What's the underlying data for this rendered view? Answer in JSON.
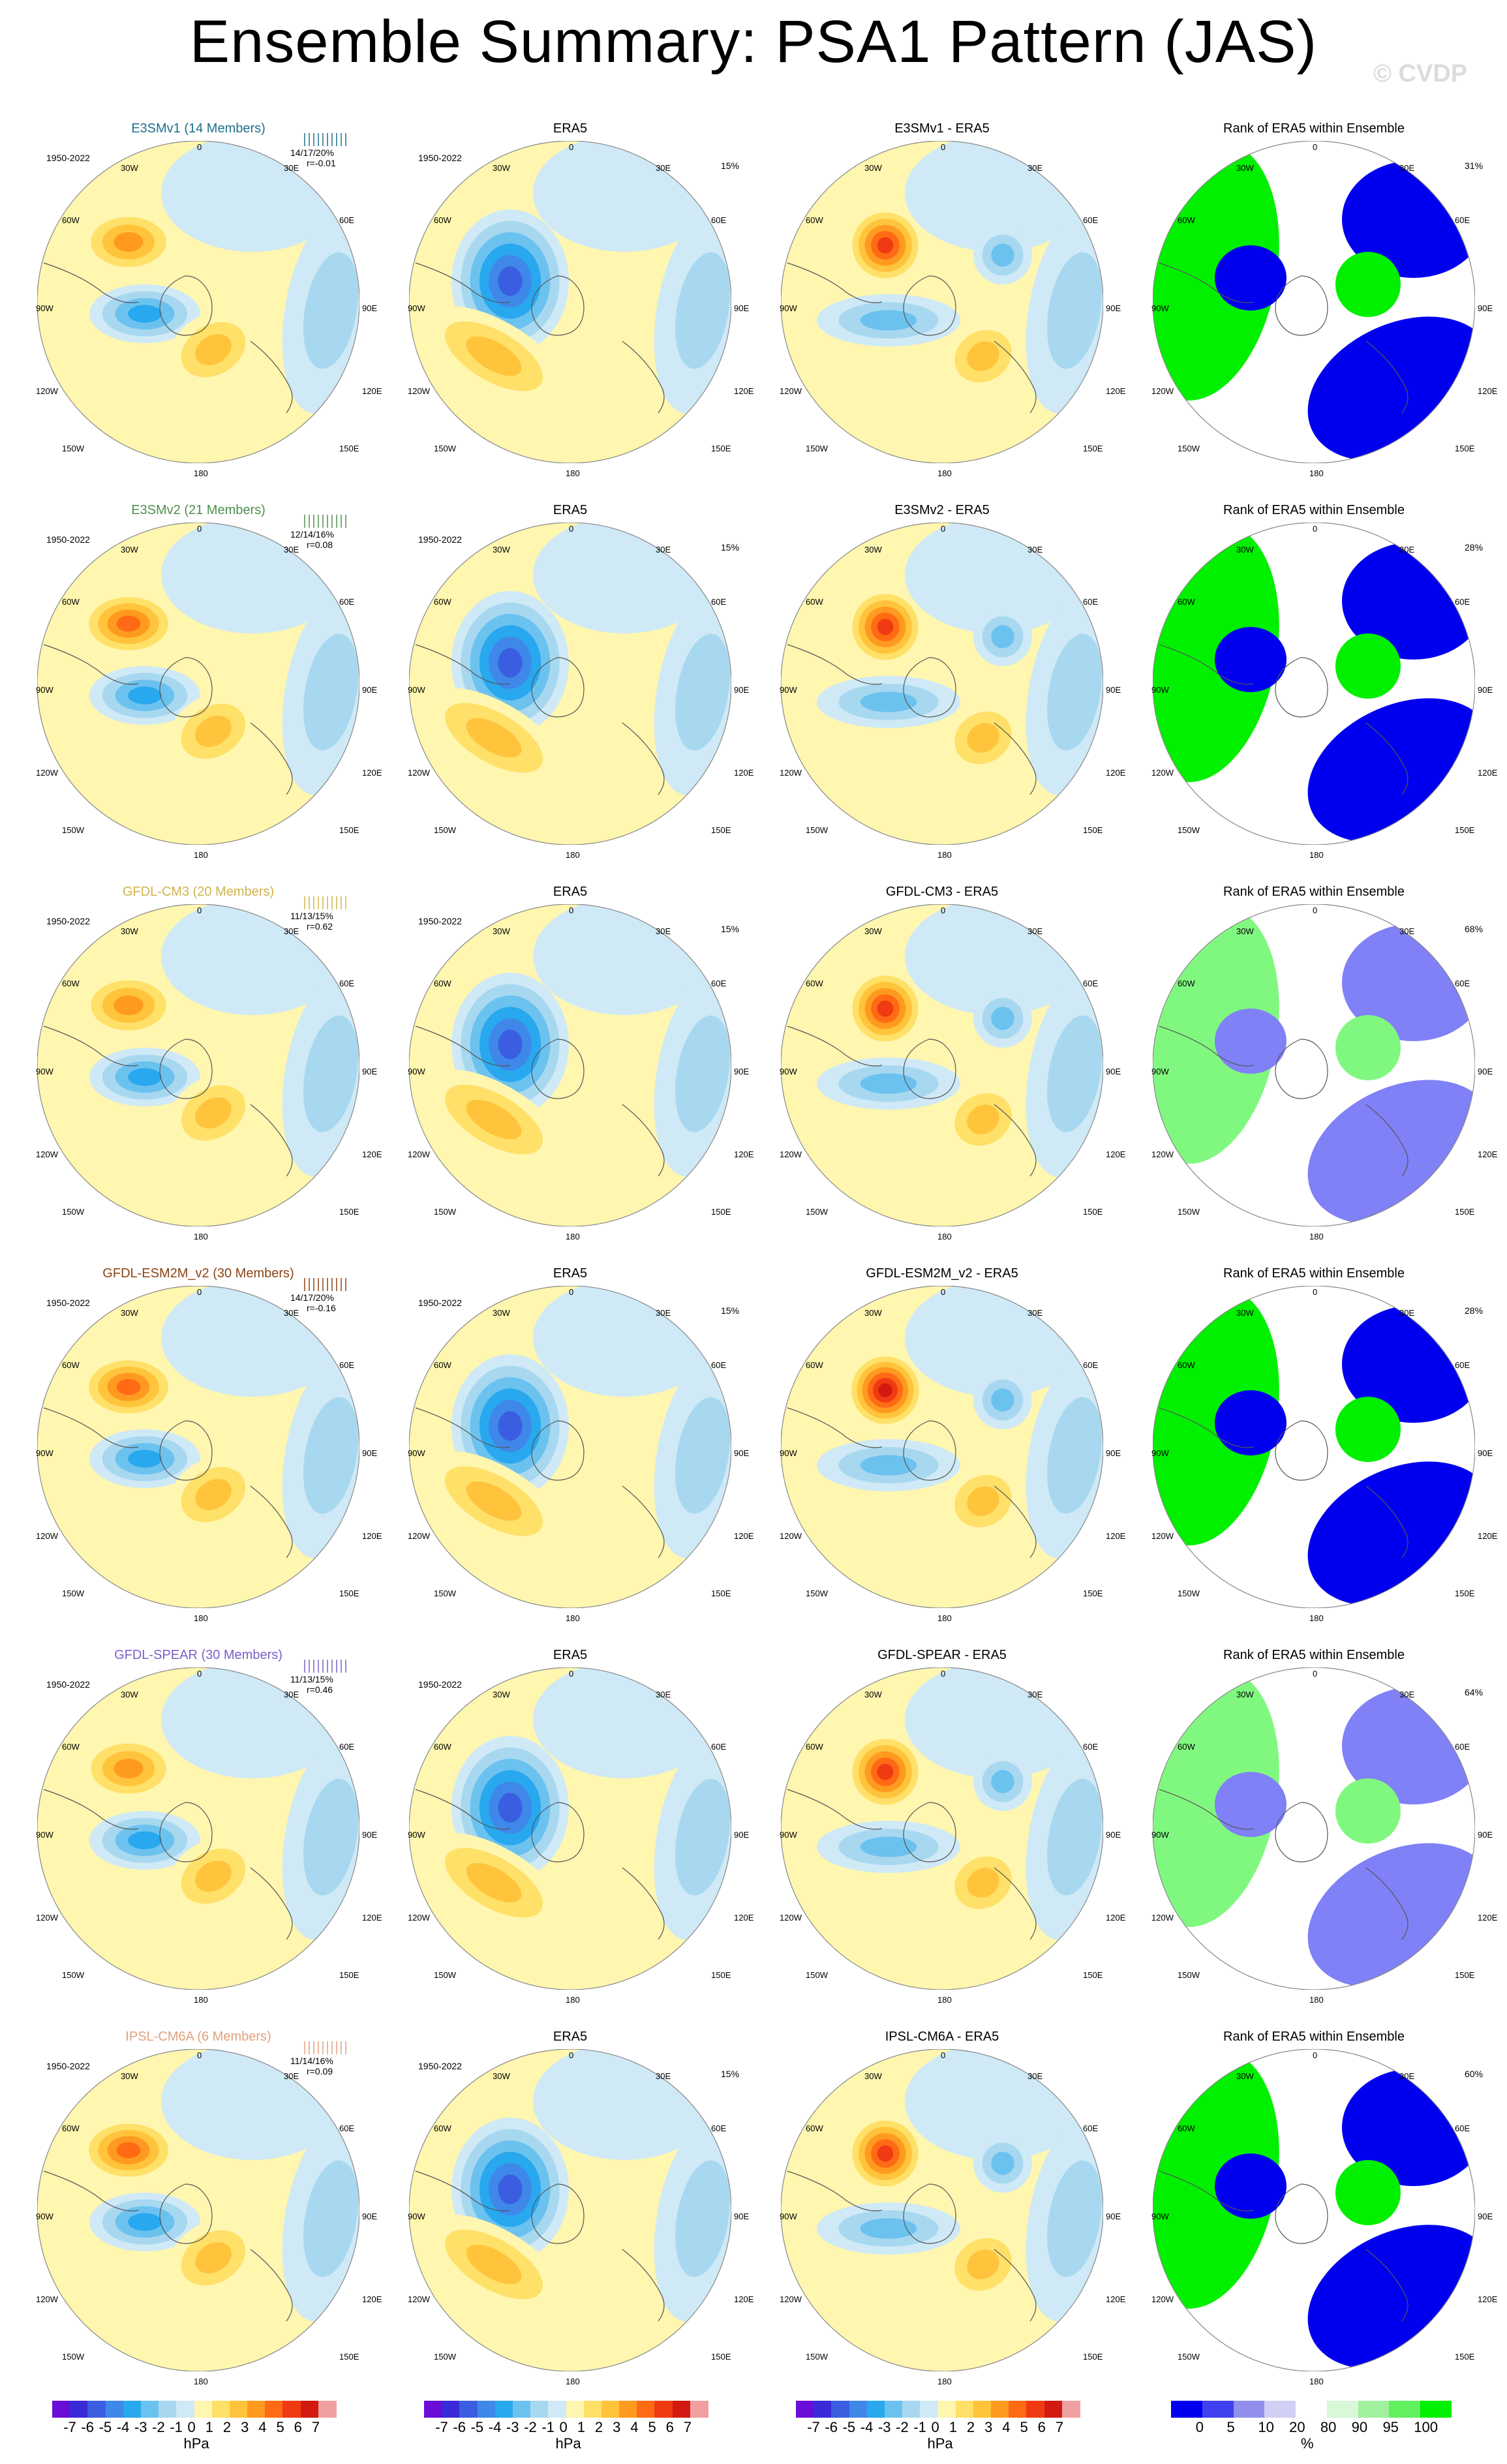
{
  "title": "Ensemble Summary: PSA1 Pattern (JAS)",
  "watermark": "© CVDP",
  "lon_labels": {
    "top": "0",
    "t30w": "30W",
    "t30e": "30E",
    "t60w": "60W",
    "t60e": "60E",
    "t90w": "90W",
    "t90e": "90E",
    "t120w": "120W",
    "t120e": "120E",
    "t150w": "150W",
    "t150e": "150E",
    "bottom": "180"
  },
  "rows": [
    {
      "model": "E3SMv1 (14 Members)",
      "model_color": "#1f6f8b",
      "years": "1950-2022",
      "stats": "14/17/20%",
      "r": "r=-0.01",
      "era5_pct": "15%",
      "diff_title": "E3SMv1 - ERA5",
      "rank_title": "Rank of ERA5 within Ensemble",
      "rank_pct": "31%"
    },
    {
      "model": "E3SMv2 (21 Members)",
      "model_color": "#4e8f4e",
      "years": "1950-2022",
      "stats": "12/14/16%",
      "r": "r=0.08",
      "era5_pct": "15%",
      "diff_title": "E3SMv2 - ERA5",
      "rank_title": "Rank of ERA5 within Ensemble",
      "rank_pct": "28%"
    },
    {
      "model": "GFDL-CM3 (20 Members)",
      "model_color": "#d2b24a",
      "years": "1950-2022",
      "stats": "11/13/15%",
      "r": "r=0.62",
      "era5_pct": "15%",
      "diff_title": "GFDL-CM3 - ERA5",
      "rank_title": "Rank of ERA5 within Ensemble",
      "rank_pct": "68%"
    },
    {
      "model": "GFDL-ESM2M_v2 (30 Members)",
      "model_color": "#8b4513",
      "years": "1950-2022",
      "stats": "14/17/20%",
      "r": "r=-0.16",
      "era5_pct": "15%",
      "diff_title": "GFDL-ESM2M_v2 - ERA5",
      "rank_title": "Rank of ERA5 within Ensemble",
      "rank_pct": "28%"
    },
    {
      "model": "GFDL-SPEAR (30 Members)",
      "model_color": "#7b5fc7",
      "years": "1950-2022",
      "stats": "11/13/15%",
      "r": "r=0.46",
      "era5_pct": "",
      "diff_title": "GFDL-SPEAR - ERA5",
      "rank_title": "Rank of ERA5 within Ensemble",
      "rank_pct": "64%"
    },
    {
      "model": "IPSL-CM6A (6 Members)",
      "model_color": "#e0a17c",
      "years": "1950-2022",
      "stats": "11/14/16%",
      "r": "r=0.09",
      "era5_pct": "15%",
      "diff_title": "IPSL-CM6A - ERA5",
      "rank_title": "Rank of ERA5 within Ensemble",
      "rank_pct": "60%"
    }
  ],
  "era5_title": "ERA5",
  "colorbar_hpa": {
    "labels": [
      "-7",
      "-6",
      "-5",
      "-4",
      "-3",
      "-2",
      "-1",
      "0",
      "1",
      "2",
      "3",
      "4",
      "5",
      "6",
      "7"
    ],
    "unit": "hPa",
    "colors": [
      "#6a0dd6",
      "#3a2ad8",
      "#3b5ee0",
      "#3f88ea",
      "#28a8ee",
      "#6cc2ef",
      "#a7d8f0",
      "#cfe9f6",
      "#fff6b0",
      "#ffe068",
      "#ffc43c",
      "#ff9a20",
      "#ff6a14",
      "#f03a12",
      "#d21a10",
      "#f0a0a0"
    ]
  },
  "colorbar_rank": {
    "labels": [
      "0",
      "5",
      "10",
      "20",
      "80",
      "90",
      "95",
      "100"
    ],
    "unit": "%",
    "colors": [
      "#0000ee",
      "#4040f0",
      "#9090ec",
      "#d0d0f4",
      "#ffffff",
      "#d8f8d8",
      "#a0f0a0",
      "#60f060",
      "#00f000"
    ]
  }
}
